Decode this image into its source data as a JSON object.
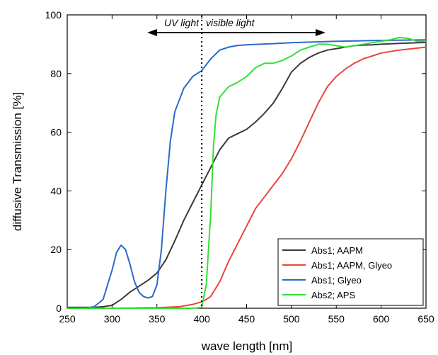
{
  "chart_data": {
    "type": "line",
    "xlabel": "wave length [nm]",
    "ylabel": "diffusive Transmission [%]",
    "xlim": [
      250,
      650
    ],
    "ylim": [
      0,
      100
    ],
    "xticks": [
      250,
      300,
      350,
      400,
      450,
      500,
      550,
      600,
      650
    ],
    "yticks": [
      0,
      20,
      40,
      60,
      80,
      100
    ],
    "grid": false,
    "legend_position": "bottom-right",
    "annotations": {
      "uv": "UV light",
      "visible": "visible light",
      "divider_x": 400
    },
    "series": [
      {
        "name": "Abs1; AAPM",
        "color": "#3a3a3a",
        "points": [
          [
            250,
            0.3
          ],
          [
            280,
            0.3
          ],
          [
            290,
            0.5
          ],
          [
            300,
            1
          ],
          [
            310,
            3
          ],
          [
            320,
            5.5
          ],
          [
            330,
            7.5
          ],
          [
            340,
            9.5
          ],
          [
            350,
            12
          ],
          [
            360,
            16.5
          ],
          [
            370,
            23
          ],
          [
            380,
            30
          ],
          [
            390,
            36
          ],
          [
            400,
            42
          ],
          [
            410,
            48
          ],
          [
            420,
            54
          ],
          [
            430,
            58
          ],
          [
            440,
            59.5
          ],
          [
            450,
            61
          ],
          [
            460,
            63.5
          ],
          [
            470,
            66.5
          ],
          [
            480,
            70
          ],
          [
            490,
            75
          ],
          [
            500,
            80.5
          ],
          [
            510,
            83.5
          ],
          [
            520,
            85.5
          ],
          [
            530,
            87
          ],
          [
            540,
            88
          ],
          [
            550,
            88.5
          ],
          [
            560,
            89
          ],
          [
            570,
            89.5
          ],
          [
            580,
            89.7
          ],
          [
            590,
            89.8
          ],
          [
            600,
            90
          ],
          [
            620,
            90.3
          ],
          [
            650,
            90.6
          ]
        ]
      },
      {
        "name": "Abs1; AAPM, Glyeo",
        "color": "#e8453c",
        "points": [
          [
            250,
            0
          ],
          [
            300,
            0
          ],
          [
            350,
            0.2
          ],
          [
            375,
            0.5
          ],
          [
            390,
            1.3
          ],
          [
            400,
            2.2
          ],
          [
            405,
            3
          ],
          [
            410,
            4
          ],
          [
            420,
            9
          ],
          [
            430,
            16
          ],
          [
            440,
            22
          ],
          [
            450,
            28
          ],
          [
            460,
            34
          ],
          [
            470,
            38
          ],
          [
            480,
            42
          ],
          [
            490,
            46
          ],
          [
            500,
            51
          ],
          [
            510,
            57
          ],
          [
            520,
            63.5
          ],
          [
            530,
            70
          ],
          [
            540,
            75.5
          ],
          [
            550,
            79
          ],
          [
            560,
            81.5
          ],
          [
            570,
            83.5
          ],
          [
            580,
            85
          ],
          [
            590,
            86
          ],
          [
            600,
            87
          ],
          [
            620,
            88
          ],
          [
            650,
            89
          ]
        ]
      },
      {
        "name": "Abs1; Glyeo",
        "color": "#2a6ac8",
        "points": [
          [
            250,
            0
          ],
          [
            270,
            0
          ],
          [
            280,
            0.5
          ],
          [
            290,
            3
          ],
          [
            300,
            13
          ],
          [
            305,
            19
          ],
          [
            310,
            21.5
          ],
          [
            315,
            20
          ],
          [
            320,
            15
          ],
          [
            325,
            9
          ],
          [
            330,
            5.5
          ],
          [
            335,
            4
          ],
          [
            340,
            3.5
          ],
          [
            345,
            4
          ],
          [
            350,
            8
          ],
          [
            355,
            20
          ],
          [
            360,
            40
          ],
          [
            365,
            57
          ],
          [
            370,
            67
          ],
          [
            380,
            75
          ],
          [
            390,
            79
          ],
          [
            400,
            81
          ],
          [
            410,
            85
          ],
          [
            420,
            88
          ],
          [
            430,
            89
          ],
          [
            440,
            89.6
          ],
          [
            450,
            89.8
          ],
          [
            480,
            90.2
          ],
          [
            500,
            90.5
          ],
          [
            550,
            91
          ],
          [
            600,
            91.3
          ],
          [
            650,
            91.5
          ]
        ]
      },
      {
        "name": "Abs2; APS",
        "color": "#33e033",
        "points": [
          [
            250,
            0
          ],
          [
            300,
            0
          ],
          [
            350,
            0
          ],
          [
            390,
            0
          ],
          [
            400,
            0.3
          ],
          [
            405,
            8
          ],
          [
            410,
            32
          ],
          [
            413,
            55
          ],
          [
            416,
            66
          ],
          [
            420,
            72
          ],
          [
            430,
            75.5
          ],
          [
            440,
            77
          ],
          [
            450,
            79
          ],
          [
            460,
            82
          ],
          [
            470,
            83.5
          ],
          [
            480,
            83.5
          ],
          [
            490,
            84.5
          ],
          [
            500,
            86
          ],
          [
            510,
            88
          ],
          [
            520,
            89
          ],
          [
            530,
            90
          ],
          [
            540,
            90
          ],
          [
            550,
            89.5
          ],
          [
            560,
            89
          ],
          [
            570,
            89.5
          ],
          [
            580,
            90
          ],
          [
            590,
            90.5
          ],
          [
            600,
            91
          ],
          [
            610,
            91.5
          ],
          [
            620,
            92.3
          ],
          [
            630,
            92
          ],
          [
            640,
            91
          ],
          [
            650,
            91
          ]
        ]
      }
    ]
  }
}
